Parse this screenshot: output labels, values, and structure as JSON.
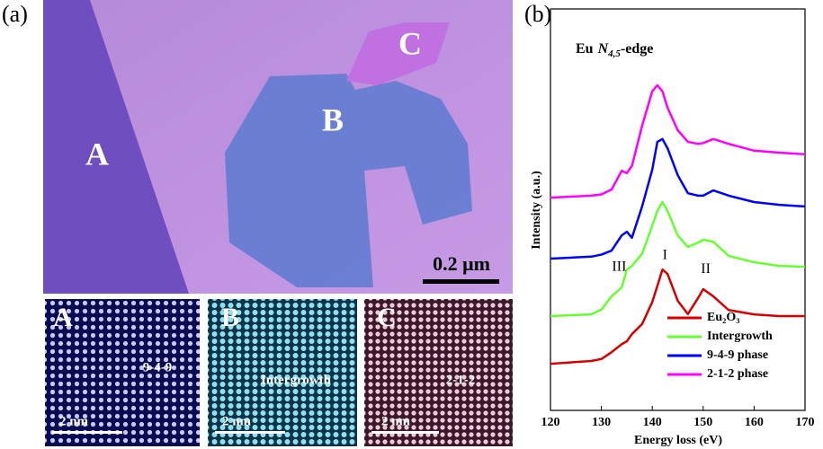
{
  "panel_a": {
    "label": "(a)",
    "regions": [
      "A",
      "B",
      "C"
    ],
    "scale_bar": "0.2 μm",
    "insets": [
      {
        "label": "A",
        "phase": "9-4-9",
        "scale_bar": "2 nm"
      },
      {
        "label": "B",
        "phase": "Intergrowth",
        "scale_bar": "2 nm"
      },
      {
        "label": "C",
        "phase": "2-1-2",
        "scale_bar": "2 nm"
      }
    ]
  },
  "chart_data": {
    "type": "line",
    "panel_label": "(b)",
    "title": {
      "element": "Eu",
      "symbol": "N",
      "subscript": "4,5",
      "suffix": "-edge"
    },
    "x_label": "Energy loss (eV)",
    "y_label": "Intensity (a.u.)",
    "x": [
      120,
      128,
      130,
      132,
      134,
      135,
      136,
      138,
      140,
      141,
      142,
      143,
      145,
      147,
      149,
      150,
      152,
      155,
      160,
      165,
      170
    ],
    "xlim": [
      120,
      170
    ],
    "xticks": [
      120,
      130,
      140,
      150,
      160,
      170
    ],
    "ylim": [
      0,
      100
    ],
    "legend": "lower right",
    "annotations": [
      "I",
      "II",
      "III"
    ],
    "series": [
      {
        "name": "Eu₂O₃",
        "color": "#d40000",
        "values": [
          11.6,
          12.3,
          12.8,
          14.5,
          16.5,
          17.2,
          19,
          21.5,
          27,
          31,
          35.1,
          34,
          27.3,
          24,
          28,
          30.2,
          28.4,
          25,
          23.9,
          23.5,
          23.5
        ]
      },
      {
        "name": "Intergrowth",
        "color": "#66ff33",
        "values": [
          23.5,
          23.9,
          25.1,
          28.4,
          30.6,
          35.1,
          36,
          39,
          46,
          49.7,
          51.9,
          49.7,
          43.6,
          40.7,
          41.8,
          42.5,
          42,
          38.5,
          36.9,
          36,
          35.8
        ]
      },
      {
        "name": "9-4-9 phase",
        "color": "#0000ff",
        "values": [
          37.8,
          38.3,
          38.8,
          39.8,
          43.6,
          44.5,
          43,
          50.8,
          60,
          66.9,
          67.6,
          65.3,
          58.6,
          54.1,
          53.5,
          53.5,
          54.8,
          53.5,
          51.9,
          51.2,
          50.8
        ]
      },
      {
        "name": "2-1-2 phase",
        "color": "#ff00ff",
        "values": [
          53,
          53.5,
          53.8,
          55,
          59.7,
          59.1,
          60.9,
          70.9,
          79.5,
          81,
          79.5,
          75.4,
          69.8,
          66.9,
          66.4,
          66.6,
          67.6,
          66.4,
          64.7,
          64.2,
          63.8
        ]
      }
    ]
  }
}
